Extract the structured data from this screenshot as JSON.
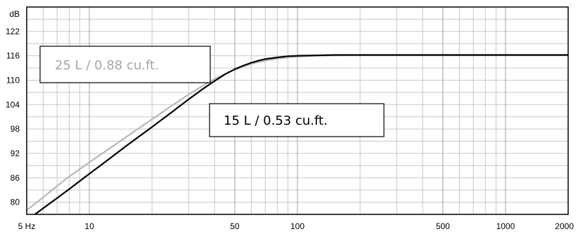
{
  "chart_data": {
    "type": "line",
    "title": "",
    "xlabel": "",
    "ylabel": "dB",
    "x_scale": "log",
    "xlim": [
      5,
      2000
    ],
    "ylim": [
      77,
      128
    ],
    "x_tick_labels": [
      "5 Hz",
      "10",
      "50",
      "100",
      "500",
      "1000",
      "2000"
    ],
    "x_tick_values": [
      5,
      10,
      50,
      100,
      500,
      1000,
      2000
    ],
    "y_ticks": [
      80,
      86,
      92,
      98,
      104,
      110,
      116,
      122
    ],
    "grid": true,
    "colors": {
      "series_15l": "#000000",
      "series_25l": "#b8b8b8",
      "grid": "#c8c8c8",
      "frame": "#000000"
    },
    "series": [
      {
        "name": "15 L / 0.53 cu.ft.",
        "x": [
          5,
          6,
          7,
          8,
          10,
          12,
          15,
          20,
          25,
          30,
          35,
          40,
          45,
          50,
          55,
          60,
          65,
          70,
          80,
          90,
          100,
          120,
          150,
          200,
          300,
          500,
          1000,
          2000
        ],
        "y": [
          75.5,
          78.5,
          81.0,
          83.2,
          87.0,
          90.0,
          93.8,
          98.5,
          102.2,
          105.3,
          107.8,
          109.8,
          111.5,
          112.7,
          113.6,
          114.3,
          114.8,
          115.2,
          115.6,
          115.9,
          116.0,
          116.1,
          116.2,
          116.2,
          116.2,
          116.2,
          116.2,
          116.2
        ]
      },
      {
        "name": "25 L / 0.88 cu.ft.",
        "x": [
          5,
          6,
          7,
          8,
          10,
          12,
          15,
          20,
          25,
          30,
          35,
          40,
          45,
          50,
          55,
          60,
          65,
          70,
          80,
          90,
          100,
          120,
          150,
          200,
          300,
          500,
          1000,
          2000
        ],
        "y": [
          78.0,
          81.2,
          84.0,
          86.3,
          89.8,
          92.6,
          96.0,
          100.4,
          103.8,
          106.5,
          108.6,
          110.3,
          111.6,
          112.6,
          113.4,
          114.0,
          114.5,
          114.8,
          115.3,
          115.6,
          115.8,
          116.0,
          116.1,
          116.2,
          116.2,
          116.2,
          116.2,
          116.2
        ]
      }
    ],
    "annotations": [
      {
        "text": "25 L / 0.88 cu.ft.",
        "series": 1
      },
      {
        "text": "15 L / 0.53 cu.ft.",
        "series": 0
      }
    ]
  }
}
